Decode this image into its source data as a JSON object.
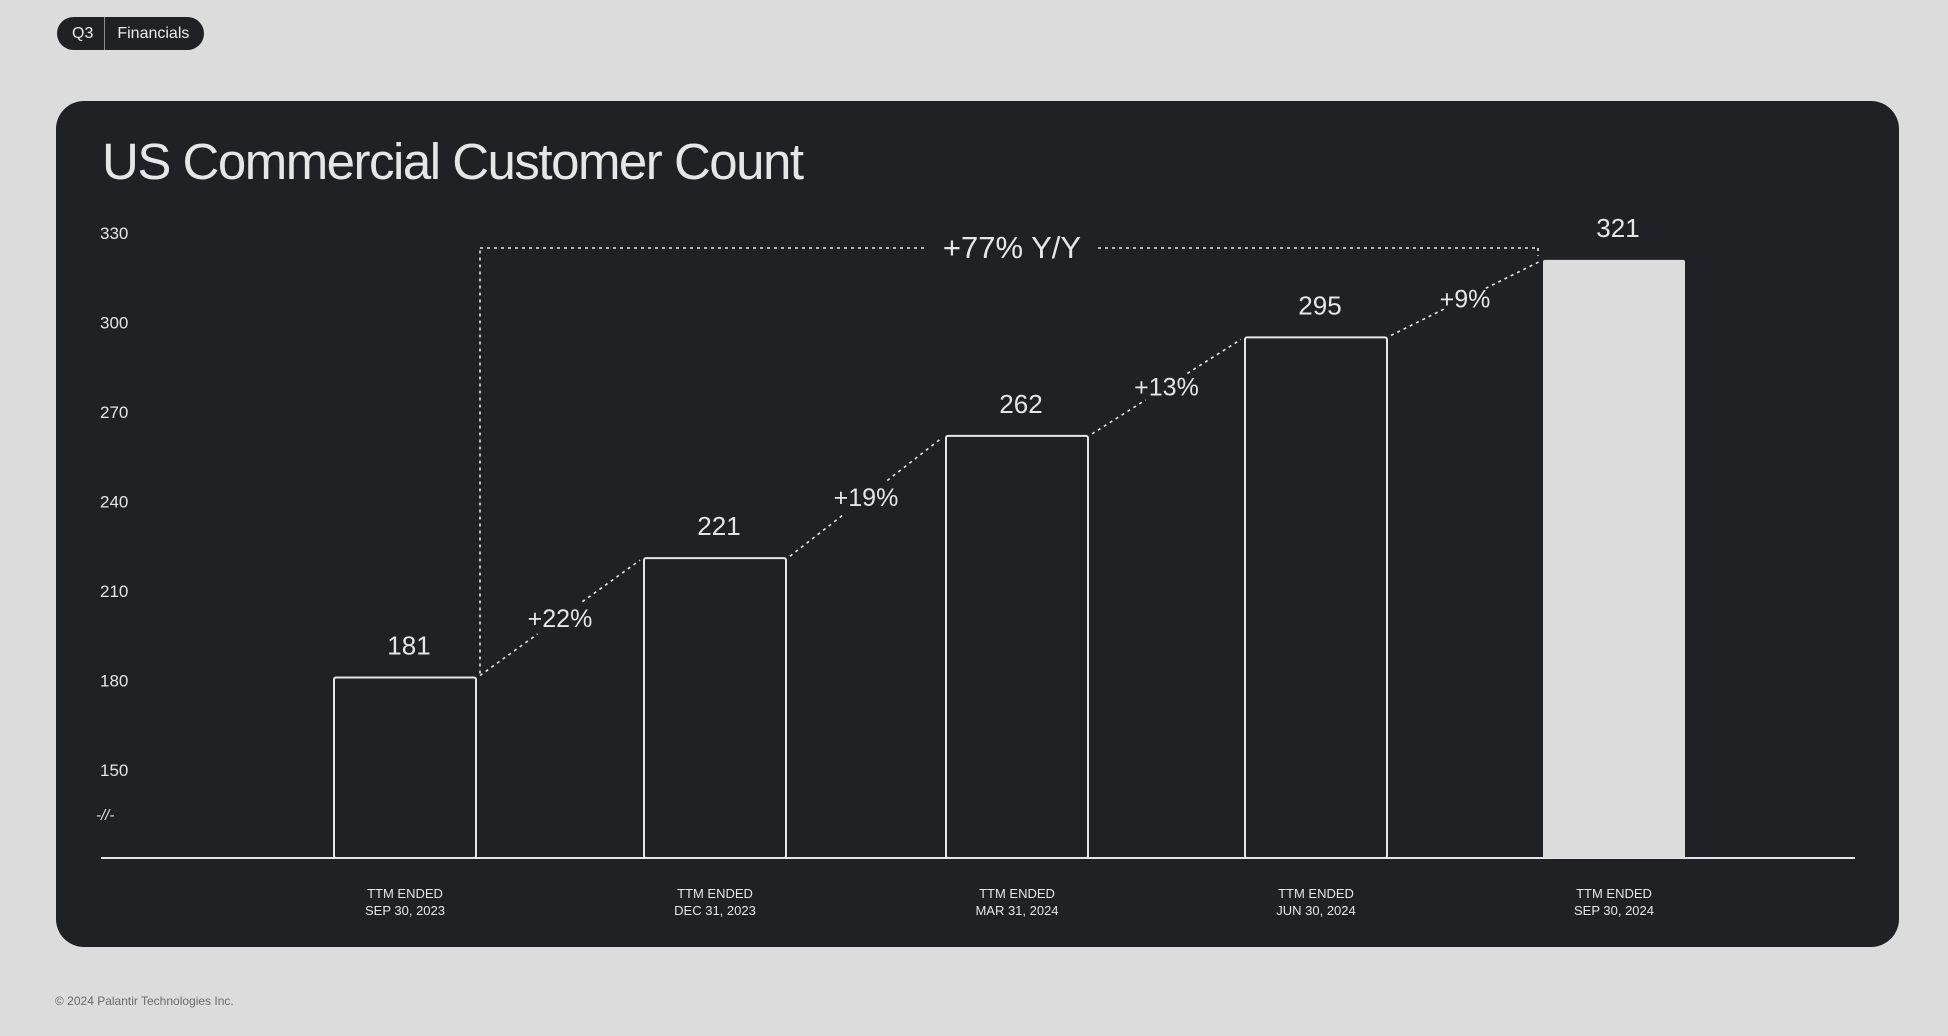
{
  "header": {
    "quarter": "Q3",
    "section": "Financials"
  },
  "footer": {
    "copyright": "© 2024 Palantir Technologies Inc."
  },
  "colors": {
    "background": "#dcdcdc",
    "card": "#1f2124",
    "bar_outline": "#e6e6e6",
    "bar_highlight": "#dcdcdc",
    "text": "#e6e6e6"
  },
  "chart_data": {
    "type": "bar",
    "title": "US Commercial Customer Count",
    "categories": [
      [
        "TTM ENDED",
        "SEP 30, 2023"
      ],
      [
        "TTM ENDED",
        "DEC 31, 2023"
      ],
      [
        "TTM ENDED",
        "MAR 31, 2024"
      ],
      [
        "TTM ENDED",
        "JUN 30, 2024"
      ],
      [
        "TTM ENDED",
        "SEP 30, 2024"
      ]
    ],
    "values": [
      181,
      221,
      262,
      295,
      321
    ],
    "value_labels": [
      "181",
      "221",
      "262",
      "295",
      "321"
    ],
    "growth_labels": [
      "+22%",
      "+19%",
      "+13%",
      "+9%"
    ],
    "yoy_label": "+77% Y/Y",
    "yticks": [
      150,
      180,
      210,
      240,
      270,
      300,
      330
    ],
    "axis_break_symbol": "-//-",
    "ylim": [
      120,
      330
    ],
    "highlight_last": true,
    "grid": false,
    "legend": "none"
  }
}
